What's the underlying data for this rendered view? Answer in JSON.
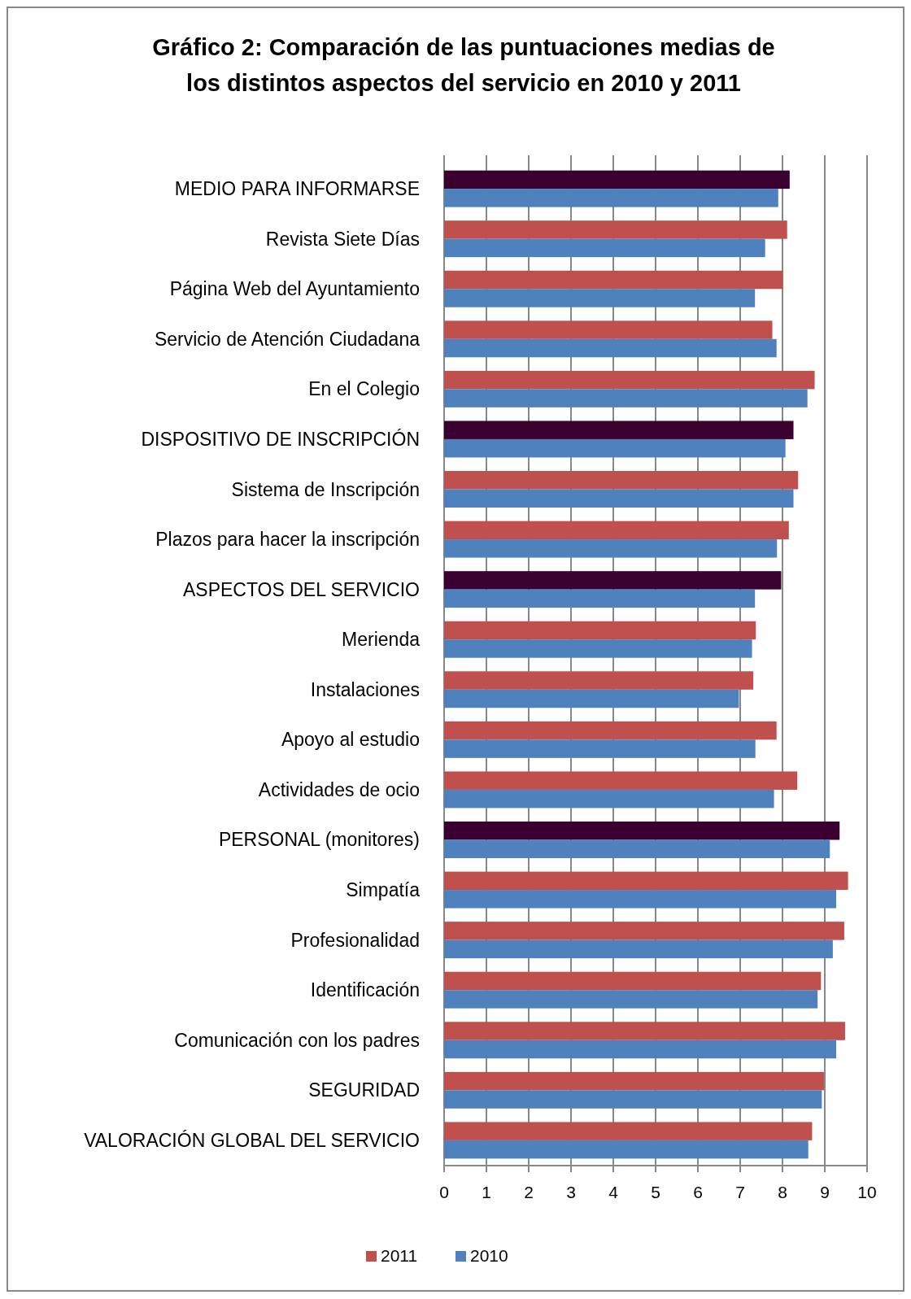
{
  "chart_data": {
    "type": "bar",
    "orientation": "horizontal",
    "title": "Gráfico 2: Comparación de las puntuaciones medias de los distintos aspectos del servicio en 2010 y 2011",
    "categories": [
      "MEDIO PARA INFORMARSE",
      "Revista Siete Días",
      "Página Web del Ayuntamiento",
      "Servicio de Atención Ciudadana",
      "En el Colegio",
      "DISPOSITIVO DE INSCRIPCIÓN",
      "Sistema de Inscripción",
      "Plazos para hacer la inscripción",
      "ASPECTOS DEL SERVICIO",
      "Merienda",
      "Instalaciones",
      "Apoyo al estudio",
      "Actividades de ocio",
      "PERSONAL (monitores)",
      "Simpatía",
      "Profesionalidad",
      "Identificación",
      "Comunicación con los padres",
      "SEGURIDAD",
      "VALORACIÓN GLOBAL DEL SERVICIO"
    ],
    "series": [
      {
        "name": "2011",
        "color": "#c0504d",
        "colors": [
          "#3a0030",
          "#c0504d",
          "#c0504d",
          "#c0504d",
          "#c0504d",
          "#3a0030",
          "#c0504d",
          "#c0504d",
          "#3a0030",
          "#c0504d",
          "#c0504d",
          "#c0504d",
          "#c0504d",
          "#3a0030",
          "#c0504d",
          "#c0504d",
          "#c0504d",
          "#c0504d",
          "#c0504d",
          "#c0504d"
        ],
        "values": [
          8.17,
          8.11,
          8.01,
          7.76,
          8.76,
          8.26,
          8.37,
          8.15,
          7.97,
          7.37,
          7.31,
          7.86,
          8.35,
          9.35,
          9.55,
          9.46,
          8.91,
          9.48,
          8.98,
          8.7
        ]
      },
      {
        "name": "2010",
        "color": "#4f81bd",
        "values": [
          7.9,
          7.59,
          7.35,
          7.86,
          8.59,
          8.07,
          8.26,
          7.87,
          7.35,
          7.28,
          6.97,
          7.36,
          7.8,
          9.12,
          9.27,
          9.19,
          8.83,
          9.27,
          8.93,
          8.61
        ]
      }
    ],
    "xlim": [
      0,
      10
    ],
    "xticks": [
      0,
      1,
      2,
      3,
      4,
      5,
      6,
      7,
      8,
      9,
      10
    ],
    "grid": "x",
    "legend": "bottom"
  }
}
